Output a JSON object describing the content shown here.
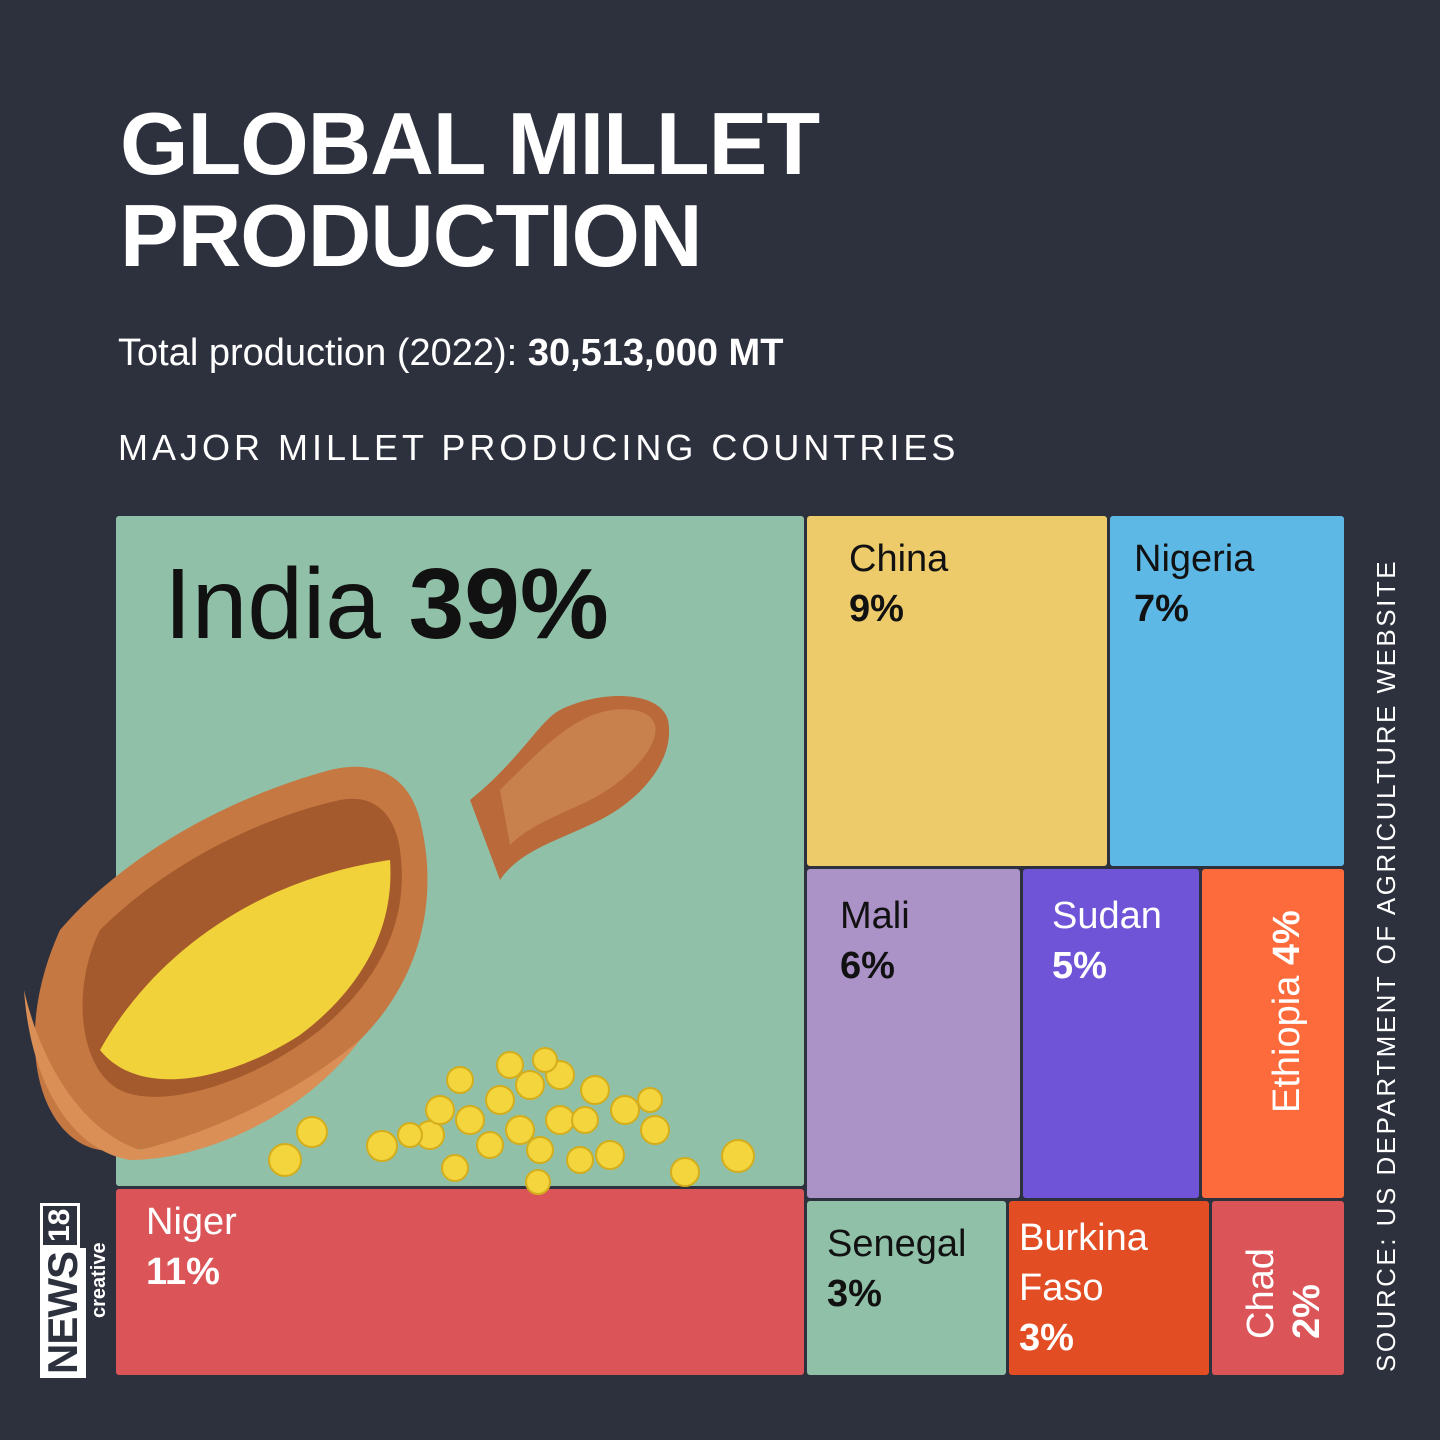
{
  "header": {
    "title_line1": "GLOBAL MILLET",
    "title_line2": "PRODUCTION",
    "total_label": "Total production (2022):",
    "total_value": "30,513,000 MT",
    "subtitle": "MAJOR MILLET PRODUCING COUNTRIES"
  },
  "source": "SOURCE: US DEPARTMENT OF AGRICULTURE WEBSITE",
  "logo": {
    "news": "NEWS",
    "num": "18",
    "creative": "creative"
  },
  "colors": {
    "background": "#2d303d",
    "India": "#90c1a8",
    "China": "#edcb6a",
    "Nigeria": "#5db8e6",
    "Niger": "#db5558",
    "Mali": "#ac93c7",
    "Sudan": "#6f54d8",
    "Ethiopia": "#fd6b3c",
    "Senegal": "#90c1a8",
    "Burkina Faso": "#e24d23",
    "Chad": "#db5558"
  },
  "chart_data": {
    "type": "treemap",
    "title": "MAJOR MILLET PRODUCING COUNTRIES",
    "unit": "%",
    "categories": [
      "India",
      "Niger",
      "China",
      "Nigeria",
      "Mali",
      "Sudan",
      "Ethiopia",
      "Senegal",
      "Burkina Faso",
      "Chad"
    ],
    "values": [
      39,
      11,
      9,
      7,
      6,
      5,
      4,
      3,
      3,
      2
    ],
    "labels": {
      "India": {
        "name": "India",
        "pct": "39%"
      },
      "Niger": {
        "name": "Niger",
        "pct": "11%"
      },
      "China": {
        "name": "China",
        "pct": "9%"
      },
      "Nigeria": {
        "name": "Nigeria",
        "pct": "7%"
      },
      "Mali": {
        "name": "Mali",
        "pct": "6%"
      },
      "Sudan": {
        "name": "Sudan",
        "pct": "5%"
      },
      "Ethiopia": {
        "name": "Ethiopia",
        "pct": "4%"
      },
      "Senegal": {
        "name": "Senegal",
        "pct": "3%"
      },
      "Burkina": {
        "name1": "Burkina",
        "name2": "Faso",
        "pct": "3%"
      },
      "Chad": {
        "name": "Chad",
        "pct": "2%"
      }
    }
  }
}
